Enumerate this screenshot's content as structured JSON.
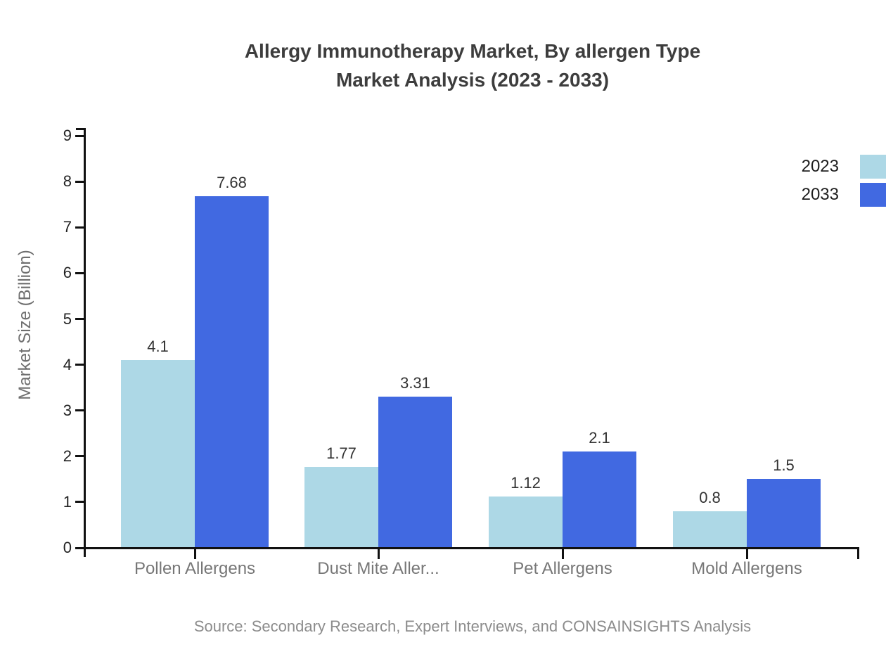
{
  "title": {
    "line1": "Allergy Immunotherapy Market, By allergen Type",
    "line2": "Market Analysis (2023 - 2033)"
  },
  "legend": [
    {
      "label": "2023",
      "color": "#ADD8E6"
    },
    {
      "label": "2033",
      "color": "#4169E1"
    }
  ],
  "chart_data": {
    "type": "bar",
    "title": "Allergy Immunotherapy Market, By allergen Type Market Analysis (2023 - 2033)",
    "categories": [
      "Pollen Allergens",
      "Dust Mite Aller...",
      "Pet Allergens",
      "Mold Allergens"
    ],
    "series": [
      {
        "name": "2023",
        "color": "#ADD8E6",
        "values": [
          4.1,
          1.77,
          1.12,
          0.8
        ]
      },
      {
        "name": "2033",
        "color": "#4169E1",
        "values": [
          7.68,
          3.31,
          2.1,
          1.5
        ]
      }
    ],
    "xlabel": "",
    "ylabel": "Market Size (Billion)",
    "ylim": [
      0,
      9
    ],
    "ytick_step": 1,
    "grid": false,
    "legend_position": "top-right",
    "value_labels": true
  },
  "source": "Source: Secondary Research, Expert Interviews, and CONSAINSIGHTS Analysis"
}
